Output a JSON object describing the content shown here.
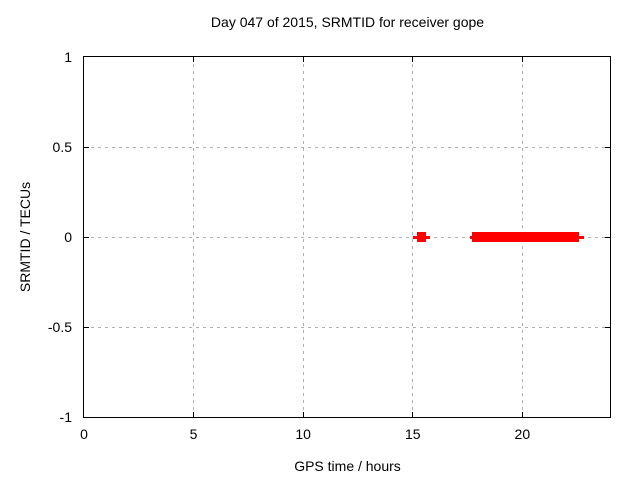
{
  "title": "Day 047 of 2015, SRMTID for receiver gope",
  "chart_data": {
    "type": "scatter",
    "title": "Day 047 of 2015, SRMTID for receiver gope",
    "xlabel": "GPS time / hours",
    "ylabel": "SRMTID / TECUs",
    "xlim": [
      0,
      24
    ],
    "ylim": [
      -1,
      1
    ],
    "xticks": [
      0,
      5,
      10,
      15,
      20
    ],
    "xtick_labels": [
      "0",
      "5",
      "10",
      "15",
      "20"
    ],
    "yticks": [
      1,
      0.5,
      0,
      -0.5,
      -1
    ],
    "ytick_labels": [
      "1",
      "0.5",
      "0",
      "-0.5",
      "-1"
    ],
    "grid": true,
    "grid_style": "dashed",
    "legend": "none",
    "colors": {
      "series": "#ff0000",
      "grid": "#b0b0b0",
      "border": "#000000",
      "background": "#ffffff",
      "text": "#000000"
    },
    "series": [
      {
        "name": "SRMTID",
        "color": "#ff0000",
        "marker": "filled-square-band",
        "description": "dense run of points at y=0; thin extent line with thick core band",
        "segments": [
          {
            "y": 0,
            "x_start": 15.0,
            "x_end": 15.8,
            "core_start": 15.2,
            "core_end": 15.6
          },
          {
            "y": 0,
            "x_start": 17.6,
            "x_end": 22.8,
            "core_start": 17.7,
            "core_end": 22.6
          }
        ]
      }
    ]
  }
}
